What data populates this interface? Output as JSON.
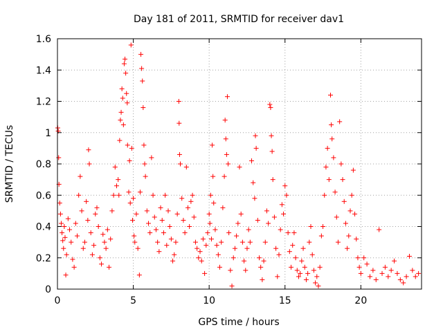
{
  "chart_data": {
    "type": "scatter",
    "title": "Day 181 of 2011, SRMTID for receiver dav1",
    "xlabel": "GPS time / hours",
    "ylabel": "SRMTID / TECUs",
    "xlim": [
      0,
      24
    ],
    "ylim": [
      0,
      1.6
    ],
    "xticks": [
      0,
      5,
      10,
      15,
      20
    ],
    "xtick_labels": [
      "0",
      "5",
      "10",
      "15",
      "20"
    ],
    "yticks": [
      0,
      0.2,
      0.4,
      0.6,
      0.8,
      1,
      1.2,
      1.4,
      1.6
    ],
    "ytick_labels": [
      "0",
      "0.2",
      "0.4",
      "0.6",
      "0.8",
      "1",
      "1.2",
      "1.4",
      "1.6"
    ],
    "grid": true,
    "marker": "+",
    "series": [
      {
        "name": "SRMTID",
        "color": "#ff0000",
        "points": [
          [
            0.02,
            1.03
          ],
          [
            0.05,
            1.01
          ],
          [
            0.08,
            0.84
          ],
          [
            0.1,
            0.67
          ],
          [
            0.15,
            0.55
          ],
          [
            0.2,
            0.48
          ],
          [
            0.25,
            0.42
          ],
          [
            0.3,
            0.36
          ],
          [
            0.35,
            0.31
          ],
          [
            0.4,
            0.26
          ],
          [
            0.45,
            0.4
          ],
          [
            0.5,
            0.33
          ],
          [
            0.55,
            0.09
          ],
          [
            0.6,
            0.22
          ],
          [
            0.7,
            0.45
          ],
          [
            0.8,
            0.38
          ],
          [
            0.9,
            0.3
          ],
          [
            1.0,
            0.19
          ],
          [
            1.1,
            0.14
          ],
          [
            1.2,
            0.42
          ],
          [
            1.3,
            0.34
          ],
          [
            1.4,
            0.6
          ],
          [
            1.5,
            0.72
          ],
          [
            1.6,
            0.5
          ],
          [
            1.7,
            0.26
          ],
          [
            1.8,
            0.3
          ],
          [
            1.9,
            0.56
          ],
          [
            2.0,
            0.44
          ],
          [
            2.05,
            0.89
          ],
          [
            2.1,
            0.8
          ],
          [
            2.2,
            0.36
          ],
          [
            2.3,
            0.22
          ],
          [
            2.4,
            0.28
          ],
          [
            2.5,
            0.48
          ],
          [
            2.6,
            0.52
          ],
          [
            2.7,
            0.4
          ],
          [
            2.8,
            0.2
          ],
          [
            2.9,
            0.16
          ],
          [
            3.0,
            0.35
          ],
          [
            3.1,
            0.3
          ],
          [
            3.2,
            0.26
          ],
          [
            3.3,
            0.38
          ],
          [
            3.4,
            0.14
          ],
          [
            3.5,
            0.32
          ],
          [
            3.6,
            0.5
          ],
          [
            3.7,
            0.6
          ],
          [
            3.8,
            0.78
          ],
          [
            3.9,
            0.66
          ],
          [
            4.0,
            0.7
          ],
          [
            4.05,
            0.6
          ],
          [
            4.1,
            0.95
          ],
          [
            4.15,
            1.08
          ],
          [
            4.2,
            1.13
          ],
          [
            4.25,
            1.28
          ],
          [
            4.3,
            1.22
          ],
          [
            4.35,
            1.05
          ],
          [
            4.4,
            1.44
          ],
          [
            4.45,
            1.47
          ],
          [
            4.5,
            1.38
          ],
          [
            4.55,
            1.25
          ],
          [
            4.6,
            1.19
          ],
          [
            4.62,
            0.92
          ],
          [
            4.7,
            0.62
          ],
          [
            4.75,
            0.82
          ],
          [
            4.8,
            0.55
          ],
          [
            4.85,
            1.56
          ],
          [
            4.9,
            0.9
          ],
          [
            4.95,
            0.44
          ],
          [
            5.0,
            0.58
          ],
          [
            5.05,
            0.34
          ],
          [
            5.1,
            0.3
          ],
          [
            5.2,
            0.48
          ],
          [
            5.3,
            0.26
          ],
          [
            5.4,
            0.09
          ],
          [
            5.45,
            0.62
          ],
          [
            5.5,
            1.5
          ],
          [
            5.55,
            1.41
          ],
          [
            5.6,
            1.33
          ],
          [
            5.65,
            1.16
          ],
          [
            5.7,
            0.92
          ],
          [
            5.75,
            0.8
          ],
          [
            5.8,
            0.72
          ],
          [
            5.9,
            0.5
          ],
          [
            6.0,
            0.42
          ],
          [
            6.1,
            0.36
          ],
          [
            6.2,
            0.84
          ],
          [
            6.3,
            0.6
          ],
          [
            6.4,
            0.46
          ],
          [
            6.5,
            0.38
          ],
          [
            6.6,
            0.3
          ],
          [
            6.7,
            0.24
          ],
          [
            6.8,
            0.52
          ],
          [
            6.9,
            0.44
          ],
          [
            7.0,
            0.36
          ],
          [
            7.1,
            0.6
          ],
          [
            7.2,
            0.28
          ],
          [
            7.3,
            0.5
          ],
          [
            7.4,
            0.4
          ],
          [
            7.5,
            0.32
          ],
          [
            7.6,
            0.18
          ],
          [
            7.7,
            0.22
          ],
          [
            7.8,
            0.3
          ],
          [
            7.9,
            0.48
          ],
          [
            8.0,
            1.2
          ],
          [
            8.02,
            1.06
          ],
          [
            8.05,
            0.86
          ],
          [
            8.1,
            0.8
          ],
          [
            8.2,
            0.58
          ],
          [
            8.3,
            0.44
          ],
          [
            8.4,
            0.36
          ],
          [
            8.5,
            0.78
          ],
          [
            8.6,
            0.52
          ],
          [
            8.7,
            0.4
          ],
          [
            8.8,
            0.56
          ],
          [
            8.9,
            0.6
          ],
          [
            9.0,
            0.46
          ],
          [
            9.1,
            0.3
          ],
          [
            9.2,
            0.26
          ],
          [
            9.3,
            0.2
          ],
          [
            9.4,
            0.24
          ],
          [
            9.5,
            0.18
          ],
          [
            9.6,
            0.32
          ],
          [
            9.7,
            0.1
          ],
          [
            9.8,
            0.28
          ],
          [
            9.9,
            0.36
          ],
          [
            10.0,
            0.48
          ],
          [
            10.05,
            0.42
          ],
          [
            10.1,
            0.6
          ],
          [
            10.15,
            0.32
          ],
          [
            10.2,
            0.92
          ],
          [
            10.25,
            0.72
          ],
          [
            10.3,
            0.55
          ],
          [
            10.4,
            0.38
          ],
          [
            10.5,
            0.28
          ],
          [
            10.6,
            0.22
          ],
          [
            10.7,
            0.14
          ],
          [
            10.8,
            0.3
          ],
          [
            10.9,
            0.52
          ],
          [
            11.0,
            0.72
          ],
          [
            11.05,
            1.08
          ],
          [
            11.1,
            0.96
          ],
          [
            11.15,
            0.86
          ],
          [
            11.2,
            1.23
          ],
          [
            11.25,
            0.8
          ],
          [
            11.3,
            0.36
          ],
          [
            11.4,
            0.12
          ],
          [
            11.5,
            0.02
          ],
          [
            11.6,
            0.2
          ],
          [
            11.7,
            0.26
          ],
          [
            11.8,
            0.34
          ],
          [
            11.9,
            0.42
          ],
          [
            12.0,
            0.78
          ],
          [
            12.1,
            0.48
          ],
          [
            12.2,
            0.3
          ],
          [
            12.3,
            0.18
          ],
          [
            12.4,
            0.12
          ],
          [
            12.5,
            0.26
          ],
          [
            12.6,
            0.38
          ],
          [
            12.7,
            0.3
          ],
          [
            12.8,
            0.82
          ],
          [
            12.9,
            0.68
          ],
          [
            13.0,
            0.58
          ],
          [
            13.05,
            0.98
          ],
          [
            13.1,
            0.9
          ],
          [
            13.2,
            0.44
          ],
          [
            13.3,
            0.2
          ],
          [
            13.4,
            0.14
          ],
          [
            13.5,
            0.06
          ],
          [
            13.6,
            0.18
          ],
          [
            13.7,
            0.3
          ],
          [
            13.8,
            0.5
          ],
          [
            13.9,
            0.42
          ],
          [
            14.0,
            1.18
          ],
          [
            14.05,
            1.16
          ],
          [
            14.1,
            0.98
          ],
          [
            14.15,
            0.88
          ],
          [
            14.2,
            0.7
          ],
          [
            14.3,
            0.46
          ],
          [
            14.4,
            0.26
          ],
          [
            14.5,
            0.08
          ],
          [
            14.6,
            0.22
          ],
          [
            14.7,
            0.38
          ],
          [
            14.8,
            0.54
          ],
          [
            14.9,
            0.48
          ],
          [
            15.0,
            0.66
          ],
          [
            15.1,
            0.6
          ],
          [
            15.2,
            0.36
          ],
          [
            15.3,
            0.24
          ],
          [
            15.4,
            0.14
          ],
          [
            15.5,
            0.28
          ],
          [
            15.6,
            0.36
          ],
          [
            15.7,
            0.2
          ],
          [
            15.8,
            0.12
          ],
          [
            15.9,
            0.08
          ],
          [
            16.0,
            0.1
          ],
          [
            16.1,
            0.18
          ],
          [
            16.2,
            0.26
          ],
          [
            16.3,
            0.14
          ],
          [
            16.4,
            0.06
          ],
          [
            16.5,
            0.1
          ],
          [
            16.6,
            0.3
          ],
          [
            16.7,
            0.4
          ],
          [
            16.8,
            0.22
          ],
          [
            16.9,
            0.12
          ],
          [
            17.0,
            0.04
          ],
          [
            17.1,
            0.08
          ],
          [
            17.2,
            0.02
          ],
          [
            17.3,
            0.14
          ],
          [
            17.4,
            0.34
          ],
          [
            17.5,
            0.4
          ],
          [
            17.6,
            0.6
          ],
          [
            17.7,
            0.78
          ],
          [
            17.8,
            0.9
          ],
          [
            17.9,
            0.7
          ],
          [
            18.0,
            1.24
          ],
          [
            18.05,
            1.05
          ],
          [
            18.1,
            0.96
          ],
          [
            18.2,
            0.84
          ],
          [
            18.3,
            0.62
          ],
          [
            18.4,
            0.46
          ],
          [
            18.5,
            0.3
          ],
          [
            18.6,
            1.07
          ],
          [
            18.7,
            0.8
          ],
          [
            18.8,
            0.7
          ],
          [
            18.9,
            0.56
          ],
          [
            19.0,
            0.42
          ],
          [
            19.1,
            0.26
          ],
          [
            19.2,
            0.34
          ],
          [
            19.3,
            0.5
          ],
          [
            19.4,
            0.6
          ],
          [
            19.5,
            0.76
          ],
          [
            19.6,
            0.48
          ],
          [
            19.7,
            0.32
          ],
          [
            19.8,
            0.2
          ],
          [
            19.9,
            0.14
          ],
          [
            20.0,
            0.1
          ],
          [
            20.2,
            0.2
          ],
          [
            20.4,
            0.16
          ],
          [
            20.6,
            0.08
          ],
          [
            20.8,
            0.12
          ],
          [
            21.0,
            0.06
          ],
          [
            21.2,
            0.38
          ],
          [
            21.4,
            0.1
          ],
          [
            21.6,
            0.14
          ],
          [
            21.8,
            0.08
          ],
          [
            22.0,
            0.12
          ],
          [
            22.2,
            0.18
          ],
          [
            22.4,
            0.1
          ],
          [
            22.6,
            0.06
          ],
          [
            22.8,
            0.04
          ],
          [
            23.0,
            0.08
          ],
          [
            23.2,
            0.21
          ],
          [
            23.4,
            0.12
          ],
          [
            23.6,
            0.08
          ],
          [
            23.8,
            0.1
          ]
        ]
      }
    ]
  }
}
